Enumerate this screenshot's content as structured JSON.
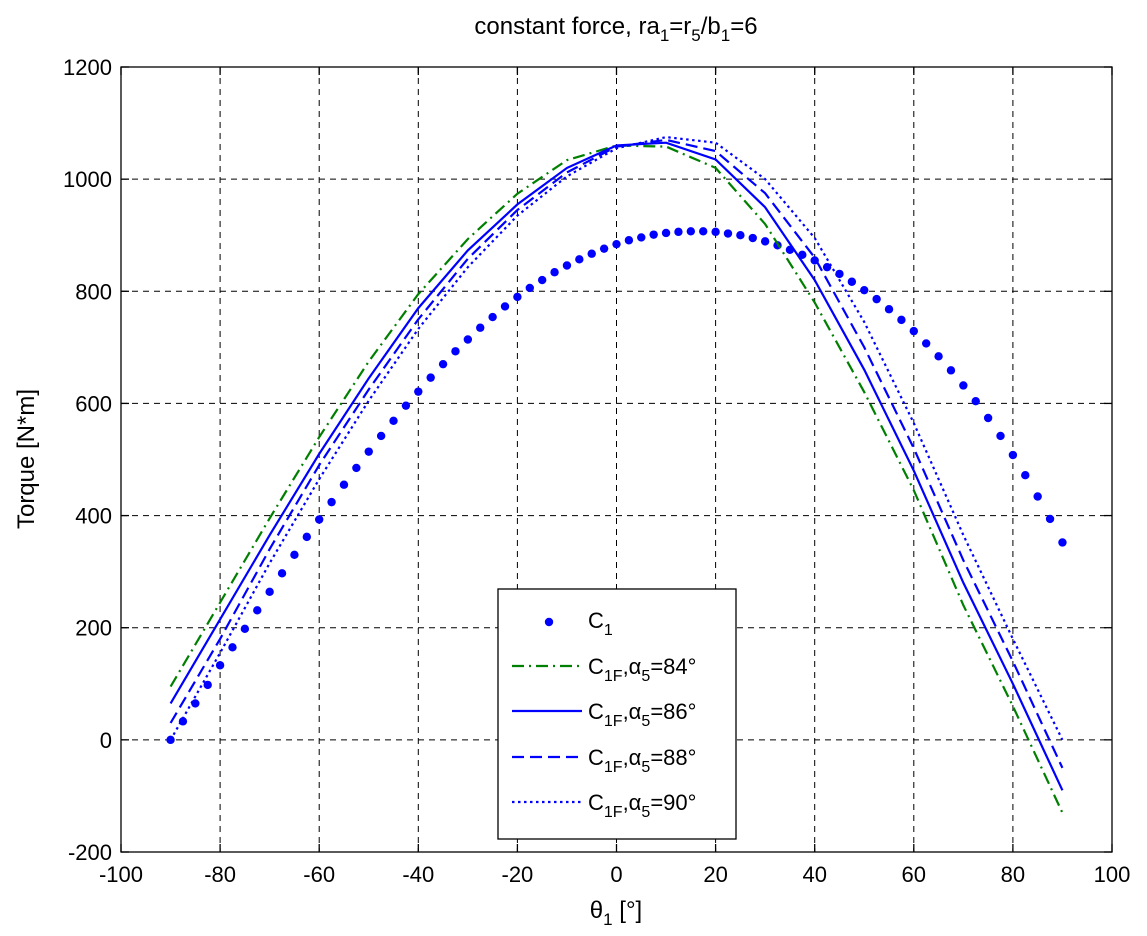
{
  "chart_data": {
    "type": "line",
    "title": {
      "main": "constant force, ra",
      "s1": "1",
      "mid1": "=r",
      "s2": "5",
      "mid2": "/b",
      "s3": "1",
      "tail": "=6"
    },
    "xlabel": {
      "main": "θ",
      "sub": "1",
      "unit": " [°]"
    },
    "ylabel": "Torque [N*m]",
    "xlim": [
      -100,
      100
    ],
    "ylim": [
      -200,
      1200
    ],
    "xticks": [
      -100,
      -80,
      -60,
      -40,
      -20,
      0,
      20,
      40,
      60,
      80,
      100
    ],
    "yticks": [
      -200,
      0,
      200,
      400,
      600,
      800,
      1000,
      1200
    ],
    "xtick_labels": [
      "-100",
      "-80",
      "-60",
      "-40",
      "-20",
      "0",
      "20",
      "40",
      "60",
      "80",
      "100"
    ],
    "ytick_labels": [
      "-200",
      "0",
      "200",
      "400",
      "600",
      "800",
      "1000",
      "1200"
    ],
    "grid": true,
    "legend_position": "bottom-center",
    "series": [
      {
        "name": {
          "main": "C",
          "sub": "1",
          "tail": ""
        },
        "style": "dots",
        "color": "#0000ff",
        "x": [
          -90,
          -87.5,
          -85,
          -82.5,
          -80,
          -77.5,
          -75,
          -72.5,
          -70,
          -67.5,
          -65,
          -62.5,
          -60,
          -57.5,
          -55,
          -52.5,
          -50,
          -47.5,
          -45,
          -42.5,
          -40,
          -37.5,
          -35,
          -32.5,
          -30,
          -27.5,
          -25,
          -22.5,
          -20,
          -17.5,
          -15,
          -12.5,
          -10,
          -7.5,
          -5,
          -2.5,
          0,
          2.5,
          5,
          7.5,
          10,
          12.5,
          15,
          17.5,
          20,
          22.5,
          25,
          27.5,
          30,
          32.5,
          35,
          37.5,
          40,
          42.5,
          45,
          47.5,
          50,
          52.5,
          55,
          57.5,
          60,
          62.5,
          65,
          67.5,
          70,
          72.5,
          75,
          77.5,
          80,
          82.5,
          85,
          87.5,
          90
        ],
        "y": [
          0,
          33,
          65,
          98,
          133,
          165,
          198,
          231,
          264,
          297,
          330,
          362,
          393,
          424,
          455,
          485,
          514,
          542,
          569,
          596,
          621,
          646,
          670,
          693,
          714,
          735,
          754,
          773,
          790,
          806,
          820,
          834,
          846,
          857,
          867,
          876,
          884,
          891,
          896,
          901,
          904,
          906,
          907,
          907,
          906,
          903,
          900,
          895,
          889,
          882,
          874,
          865,
          855,
          843,
          831,
          817,
          802,
          786,
          768,
          749,
          729,
          707,
          684,
          659,
          632,
          604,
          574,
          542,
          508,
          472,
          434,
          394,
          352
        ]
      },
      {
        "name": {
          "main": "C",
          "sub": "1F",
          "tail": ",α",
          "sub2": "5",
          "tail2": "=84°"
        },
        "style": "dashdot",
        "color": "#008000",
        "x": [
          -90,
          -80,
          -70,
          -60,
          -50,
          -40,
          -30,
          -20,
          -10,
          0,
          10,
          20,
          30,
          40,
          50,
          60,
          70,
          80,
          90
        ],
        "y": [
          95,
          245,
          395,
          540,
          675,
          795,
          893,
          974,
          1034,
          1060,
          1058,
          1020,
          920,
          780,
          620,
          445,
          240,
          60,
          -130
        ]
      },
      {
        "name": {
          "main": "C",
          "sub": "1F",
          "tail": ",α",
          "sub2": "5",
          "tail2": "=86°"
        },
        "style": "solid",
        "color": "#0000ff",
        "x": [
          -90,
          -80,
          -70,
          -60,
          -50,
          -40,
          -30,
          -20,
          -10,
          0,
          10,
          20,
          30,
          40,
          50,
          60,
          70,
          80,
          90
        ],
        "y": [
          65,
          215,
          365,
          510,
          645,
          770,
          873,
          955,
          1020,
          1060,
          1065,
          1035,
          950,
          820,
          660,
          480,
          280,
          100,
          -90
        ]
      },
      {
        "name": {
          "main": "C",
          "sub": "1F",
          "tail": ",α",
          "sub2": "5",
          "tail2": "=88°"
        },
        "style": "dashed",
        "color": "#0000ff",
        "x": [
          -90,
          -80,
          -70,
          -60,
          -50,
          -40,
          -30,
          -20,
          -10,
          0,
          10,
          20,
          30,
          40,
          50,
          60,
          70,
          80,
          90
        ],
        "y": [
          30,
          180,
          340,
          490,
          625,
          750,
          858,
          945,
          1012,
          1058,
          1070,
          1050,
          975,
          860,
          700,
          520,
          320,
          140,
          -50
        ]
      },
      {
        "name": {
          "main": "C",
          "sub": "1F",
          "tail": ",α",
          "sub2": "5",
          "tail2": "=90°"
        },
        "style": "dotted",
        "color": "#0000ff",
        "x": [
          -90,
          -80,
          -70,
          -60,
          -50,
          -40,
          -30,
          -20,
          -10,
          0,
          10,
          20,
          30,
          40,
          50,
          60,
          70,
          80,
          90
        ],
        "y": [
          0,
          155,
          315,
          465,
          605,
          733,
          843,
          935,
          1005,
          1055,
          1075,
          1065,
          1000,
          895,
          745,
          565,
          365,
          180,
          0
        ]
      }
    ]
  }
}
